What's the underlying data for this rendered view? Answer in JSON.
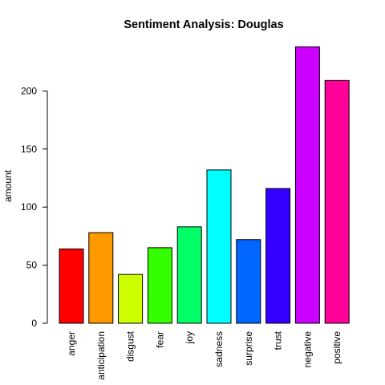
{
  "chart_data": {
    "type": "bar",
    "title": "Sentiment Analysis: Douglas",
    "xlabel": "",
    "ylabel": "amount",
    "ylim": [
      0,
      240
    ],
    "yticks": [
      0,
      50,
      100,
      150,
      200
    ],
    "grid": false,
    "legend": "none",
    "categories": [
      "anger",
      "anticipation",
      "disgust",
      "fear",
      "joy",
      "sadness",
      "surprise",
      "trust",
      "negative",
      "positive"
    ],
    "values": [
      64,
      78,
      42,
      65,
      83,
      132,
      72,
      116,
      238,
      209
    ],
    "colors": [
      "#FF0000",
      "#FF9900",
      "#CCFF00",
      "#33FF00",
      "#00FF66",
      "#00FFFF",
      "#0066FF",
      "#3300FF",
      "#CC00FF",
      "#FF0099"
    ]
  }
}
